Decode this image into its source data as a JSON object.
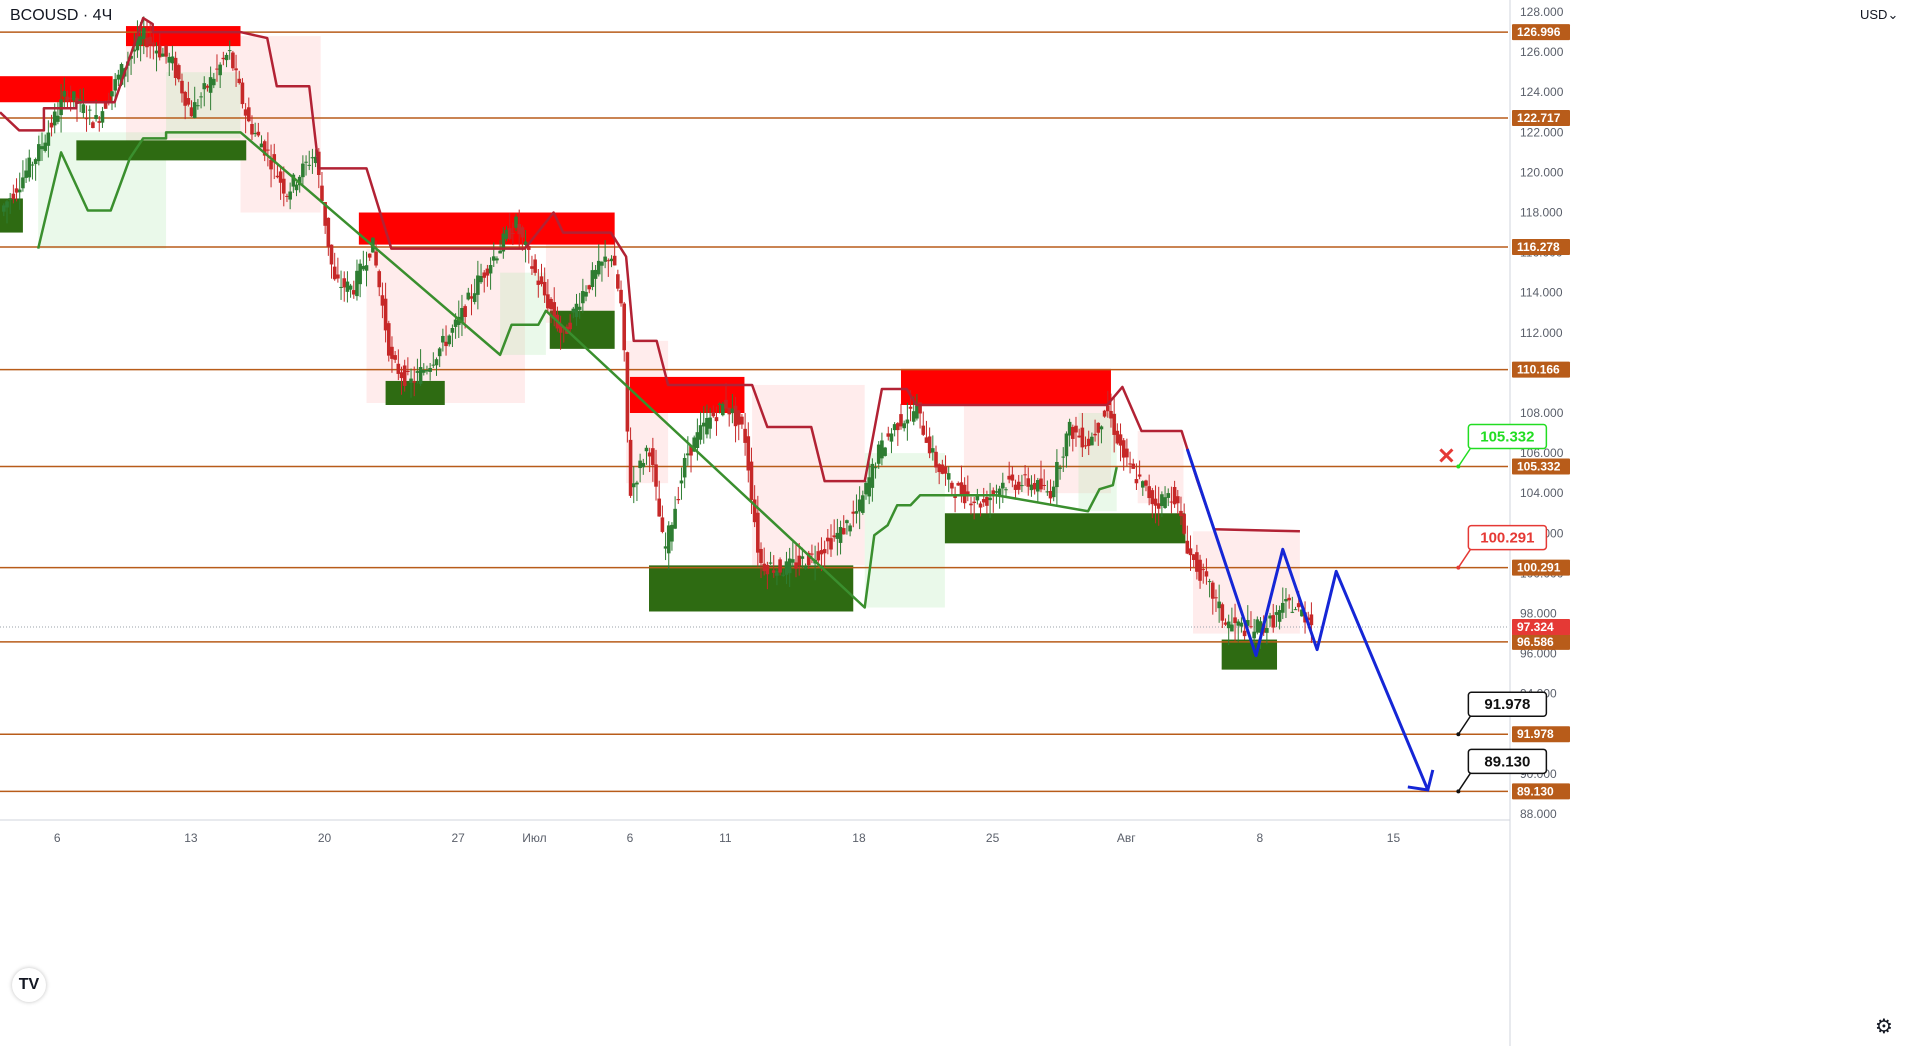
{
  "header": {
    "symbol": "BCOUSD · 4Ч",
    "currency": "USD"
  },
  "icons": {
    "logo": "tradingview-logo",
    "settings": "gear-icon",
    "invalidation": "x-icon"
  },
  "colors": {
    "level": "#b85c1a",
    "resistance": "#ff0000",
    "support": "#2e6b12",
    "trend_down": "#b22234",
    "trend_up": "#3a8f2e",
    "forecast": "#1526d6",
    "candle_up": "#2e7d32",
    "candle_down": "#c62828"
  },
  "chart_data": {
    "type": "line",
    "title": "",
    "xlabel": "",
    "ylabel": "",
    "ylim": [
      87.7,
      128.6
    ],
    "y_ticks": [
      "88.000",
      "90.000",
      "92.000",
      "94.000",
      "96.000",
      "98.000",
      "100.000",
      "102.000",
      "104.000",
      "106.000",
      "108.000",
      "110.000",
      "112.000",
      "114.000",
      "116.000",
      "118.000",
      "120.000",
      "122.000",
      "124.000",
      "126.000",
      "128.000"
    ],
    "x_ticks": [
      {
        "label": "6",
        "t": 6
      },
      {
        "label": "13",
        "t": 13
      },
      {
        "label": "20",
        "t": 20
      },
      {
        "label": "27",
        "t": 27
      },
      {
        "label": "Июл",
        "t": 31
      },
      {
        "label": "6",
        "t": 36
      },
      {
        "label": "11",
        "t": 41
      },
      {
        "label": "18",
        "t": 48
      },
      {
        "label": "25",
        "t": 55
      },
      {
        "label": "Авг",
        "t": 62
      },
      {
        "label": "8",
        "t": 69
      },
      {
        "label": "15",
        "t": 76
      }
    ],
    "xlim": [
      3,
      82
    ],
    "price_levels": [
      126.996,
      122.717,
      116.278,
      110.166,
      105.332,
      100.291,
      96.586,
      91.978,
      89.13
    ],
    "level_labels": [
      "126.996",
      "122.717",
      "116.278",
      "110.166",
      "105.332",
      "100.291",
      "96.586",
      "91.978",
      "89.130"
    ],
    "current_price": 97.324,
    "current_price_label": "97.324",
    "callouts": [
      {
        "label": "105.332",
        "t": 79.4,
        "price": 105.332,
        "kind": "invalidation"
      },
      {
        "label": "100.291",
        "t": 79.4,
        "price": 100.291,
        "kind": "target-red"
      },
      {
        "label": "91.978",
        "t": 79.4,
        "price": 91.978,
        "kind": "target"
      },
      {
        "label": "89.130",
        "t": 79.4,
        "price": 89.13,
        "kind": "target"
      }
    ],
    "supply_zones": [
      {
        "t1": 3,
        "t2": 8.9,
        "p1": 123.5,
        "p2": 124.8
      },
      {
        "t1": 9.6,
        "t2": 15.6,
        "p1": 126.3,
        "p2": 127.3
      },
      {
        "t1": 21.8,
        "t2": 35.2,
        "p1": 116.4,
        "p2": 118.0
      },
      {
        "t1": 36.0,
        "t2": 42.0,
        "p1": 108.0,
        "p2": 109.8
      },
      {
        "t1": 50.2,
        "t2": 61.2,
        "p1": 108.4,
        "p2": 110.2
      }
    ],
    "demand_zones": [
      {
        "t1": 3,
        "t2": 4.2,
        "p1": 117.0,
        "p2": 118.7
      },
      {
        "t1": 7.0,
        "t2": 15.9,
        "p1": 120.6,
        "p2": 121.6
      },
      {
        "t1": 23.2,
        "t2": 26.3,
        "p1": 108.4,
        "p2": 109.6
      },
      {
        "t1": 31.8,
        "t2": 35.2,
        "p1": 111.2,
        "p2": 113.1
      },
      {
        "t1": 37.0,
        "t2": 47.7,
        "p1": 98.1,
        "p2": 100.4
      },
      {
        "t1": 52.5,
        "t2": 65.1,
        "p1": 101.5,
        "p2": 103.0
      },
      {
        "t1": 67.0,
        "t2": 69.9,
        "p1": 95.2,
        "p2": 96.7
      }
    ],
    "trend_down": [
      [
        3,
        123.0
      ],
      [
        4,
        122.1
      ],
      [
        5.3,
        122.1
      ],
      [
        5.3,
        123.2
      ],
      [
        7.0,
        123.2
      ],
      [
        7.0,
        123.5
      ],
      [
        9.0,
        123.5
      ],
      [
        10.5,
        127.7
      ],
      [
        11,
        127.4
      ],
      [
        11,
        127.0
      ],
      [
        15.6,
        127.0
      ],
      [
        17.0,
        126.7
      ],
      [
        17.5,
        124.3
      ],
      [
        19.2,
        124.3
      ],
      [
        19.7,
        120.2
      ],
      [
        22.2,
        120.2
      ],
      [
        23.5,
        116.2
      ],
      [
        30.5,
        116.2
      ],
      [
        32,
        118.0
      ],
      [
        32.5,
        117.0
      ],
      [
        35,
        117.0
      ],
      [
        35.8,
        115.8
      ],
      [
        36.2,
        111.6
      ],
      [
        37.4,
        111.6
      ],
      [
        38,
        109.4
      ],
      [
        42.4,
        109.4
      ],
      [
        43.2,
        107.3
      ],
      [
        45.5,
        107.3
      ],
      [
        46.2,
        104.6
      ],
      [
        48.3,
        104.6
      ],
      [
        49.2,
        109.2
      ],
      [
        50.5,
        109.2
      ],
      [
        51,
        108.4
      ],
      [
        61,
        108.4
      ],
      [
        61.8,
        109.3
      ],
      [
        62.8,
        107.1
      ],
      [
        64.9,
        107.1
      ],
      [
        65.7,
        104.7
      ],
      [
        66.6,
        102.2
      ],
      [
        71.1,
        102.1
      ]
    ],
    "trend_up": [
      [
        5.0,
        116.2
      ],
      [
        6.2,
        121.0
      ],
      [
        7.6,
        118.1
      ],
      [
        8.8,
        118.1
      ],
      [
        9.8,
        120.7
      ],
      [
        10.5,
        121.7
      ],
      [
        11.7,
        121.7
      ],
      [
        11.7,
        122.0
      ],
      [
        15.6,
        122.0
      ],
      [
        29.2,
        110.9
      ],
      [
        29.8,
        112.4
      ],
      [
        31.2,
        112.4
      ],
      [
        31.6,
        113.1
      ],
      [
        48.3,
        98.3
      ],
      [
        48.8,
        101.9
      ],
      [
        49.5,
        102.4
      ],
      [
        50.0,
        103.4
      ],
      [
        50.7,
        103.4
      ],
      [
        51.2,
        103.9
      ],
      [
        55.2,
        103.9
      ],
      [
        60.0,
        103.1
      ],
      [
        60.6,
        104.2
      ],
      [
        61.3,
        104.4
      ],
      [
        61.5,
        105.3
      ]
    ],
    "forecast_path": [
      [
        65.2,
        106.2
      ],
      [
        68.8,
        95.9
      ],
      [
        70.2,
        101.2
      ],
      [
        72.0,
        96.2
      ],
      [
        73.0,
        100.1
      ],
      [
        77.8,
        89.2
      ]
    ],
    "forecast_arrow_end": [
      77.8,
      89.2
    ]
  }
}
